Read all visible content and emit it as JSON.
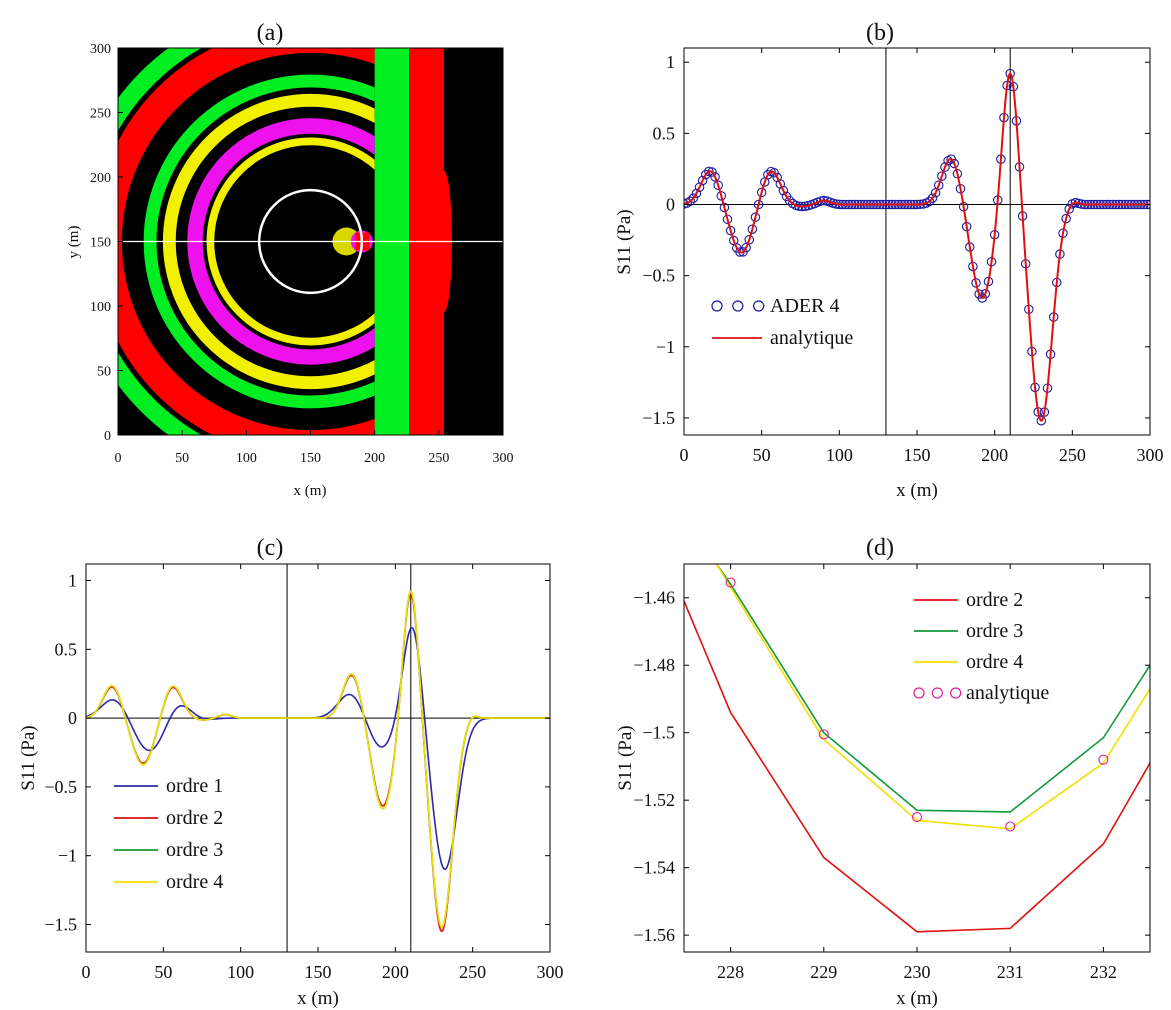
{
  "chart_data": [
    {
      "panel_label": "(a)",
      "type": "heatmap",
      "xlabel": "x (m)",
      "ylabel": "y (m)",
      "xlim": [
        0,
        300
      ],
      "ylim": [
        0,
        300
      ],
      "xticks": [
        0,
        50,
        100,
        150,
        200,
        250,
        300
      ],
      "yticks": [
        0,
        50,
        100,
        150,
        200,
        250,
        300
      ],
      "colors": {
        "background": "#000000",
        "green": "#00ee22",
        "red": "#ff0000",
        "yellow": "#f0f000",
        "magenta": "#ee11ee",
        "line": "#ffffff"
      },
      "horizontal_line_y": 150,
      "circle_center": [
        150,
        150
      ],
      "circle_radius": 40,
      "interface_x": 200,
      "bands": [
        {
          "x0": 200,
          "x1": 227,
          "color": "green"
        },
        {
          "x0": 227,
          "x1": 254,
          "color": "red"
        }
      ],
      "rings": [
        {
          "r": 180,
          "color": "green",
          "width": 14
        },
        {
          "r": 158,
          "color": "red",
          "width": 22
        },
        {
          "r": 125,
          "color": "green",
          "width": 10
        },
        {
          "r": 110,
          "color": "yellow",
          "width": 10
        },
        {
          "r": 90,
          "color": "magenta",
          "width": 12
        },
        {
          "r": 78,
          "color": "yellow",
          "width": 6
        }
      ]
    },
    {
      "panel_label": "(b)",
      "type": "line",
      "xlabel": "x (m)",
      "ylabel": "S11 (Pa)",
      "xlim": [
        0,
        300
      ],
      "ylim": [
        -1.62,
        1.1
      ],
      "xticks": [
        0,
        50,
        100,
        150,
        200,
        250,
        300
      ],
      "yticks": [
        1,
        0.5,
        0,
        -0.5,
        -1,
        -1.5
      ],
      "ytick_labels": [
        "1",
        "0.5",
        "0",
        "−0.5",
        "−1",
        "−1.5"
      ],
      "vlines": [
        130,
        210
      ],
      "zero_line": true,
      "legend_position": "lower-left",
      "legend": [
        {
          "label": "ADER 4",
          "color": "#1a1aa0",
          "style": "circles"
        },
        {
          "label": "analytique",
          "color": "#e01010",
          "style": "line"
        }
      ],
      "series": [
        {
          "name": "ADER 4",
          "marker_spacing": 2,
          "style": "circles",
          "color": "#1a1aa0",
          "source": "signal_ordre4"
        },
        {
          "name": "analytique",
          "style": "line",
          "color": "#e01010",
          "source": "signal_ordre4"
        }
      ]
    },
    {
      "panel_label": "(c)",
      "type": "line",
      "xlabel": "x (m)",
      "ylabel": "S11 (Pa)",
      "xlim": [
        0,
        300
      ],
      "ylim": [
        -1.7,
        1.12
      ],
      "xticks": [
        0,
        50,
        100,
        150,
        200,
        250,
        300
      ],
      "yticks": [
        1,
        0.5,
        0,
        -0.5,
        -1,
        -1.5
      ],
      "ytick_labels": [
        "1",
        "0.5",
        "0",
        "−0.5",
        "−1",
        "−1.5"
      ],
      "vlines": [
        130,
        210
      ],
      "zero_line": true,
      "legend_position": "lower-left",
      "legend": [
        {
          "label": "ordre 1",
          "color": "#2a2aa8"
        },
        {
          "label": "ordre 2",
          "color": "#e01010"
        },
        {
          "label": "ordre 3",
          "color": "#129a3a"
        },
        {
          "label": "ordre 4",
          "color": "#f2e000"
        }
      ],
      "series": [
        {
          "name": "ordre 1",
          "color": "#2a2aa8",
          "source": "signal_ordre1"
        },
        {
          "name": "ordre 2",
          "color": "#e01010",
          "source": "signal_ordre2"
        },
        {
          "name": "ordre 3",
          "color": "#129a3a",
          "source": "signal_ordre4"
        },
        {
          "name": "ordre 4",
          "color": "#f2e000",
          "source": "signal_ordre4"
        }
      ]
    },
    {
      "panel_label": "(d)",
      "type": "line",
      "xlabel": "x (m)",
      "ylabel": "S11 (Pa)",
      "xlim": [
        227.5,
        232.5
      ],
      "ylim": [
        -1.565,
        -1.45
      ],
      "xticks": [
        228,
        229,
        230,
        231,
        232
      ],
      "yticks": [
        -1.46,
        -1.48,
        -1.5,
        -1.52,
        -1.54,
        -1.56
      ],
      "ytick_labels": [
        "−1.46",
        "−1.48",
        "−1.5",
        "−1.52",
        "−1.54",
        "−1.56"
      ],
      "legend_position": "top-right",
      "legend": [
        {
          "label": "ordre 2",
          "color": "#e01010",
          "style": "line"
        },
        {
          "label": "ordre 3",
          "color": "#129a3a",
          "style": "line"
        },
        {
          "label": "ordre 4",
          "color": "#f2e000",
          "style": "line"
        },
        {
          "label": "analytique",
          "color": "#e0209a",
          "style": "circles"
        }
      ],
      "series": [
        {
          "name": "ordre 2",
          "color": "#e01010",
          "x": [
            227.5,
            228,
            229,
            230,
            231,
            232,
            232.5
          ],
          "y": [
            -1.461,
            -1.494,
            -1.537,
            -1.559,
            -1.558,
            -1.533,
            -1.509
          ]
        },
        {
          "name": "ordre 3",
          "color": "#129a3a",
          "x": [
            227.85,
            228,
            229,
            230,
            231,
            232,
            232.5
          ],
          "y": [
            -1.45,
            -1.456,
            -1.5,
            -1.523,
            -1.5235,
            -1.5015,
            -1.48
          ]
        },
        {
          "name": "ordre 4",
          "color": "#f2e000",
          "x": [
            227.85,
            228,
            229,
            230,
            231,
            232,
            232.5
          ],
          "y": [
            -1.45,
            -1.457,
            -1.502,
            -1.526,
            -1.5285,
            -1.509,
            -1.487
          ]
        },
        {
          "name": "analytique",
          "color": "#e0209a",
          "style": "circles",
          "x": [
            228,
            229,
            230,
            231,
            232
          ],
          "y": [
            -1.4555,
            -1.5005,
            -1.525,
            -1.5278,
            -1.508
          ]
        }
      ]
    }
  ]
}
